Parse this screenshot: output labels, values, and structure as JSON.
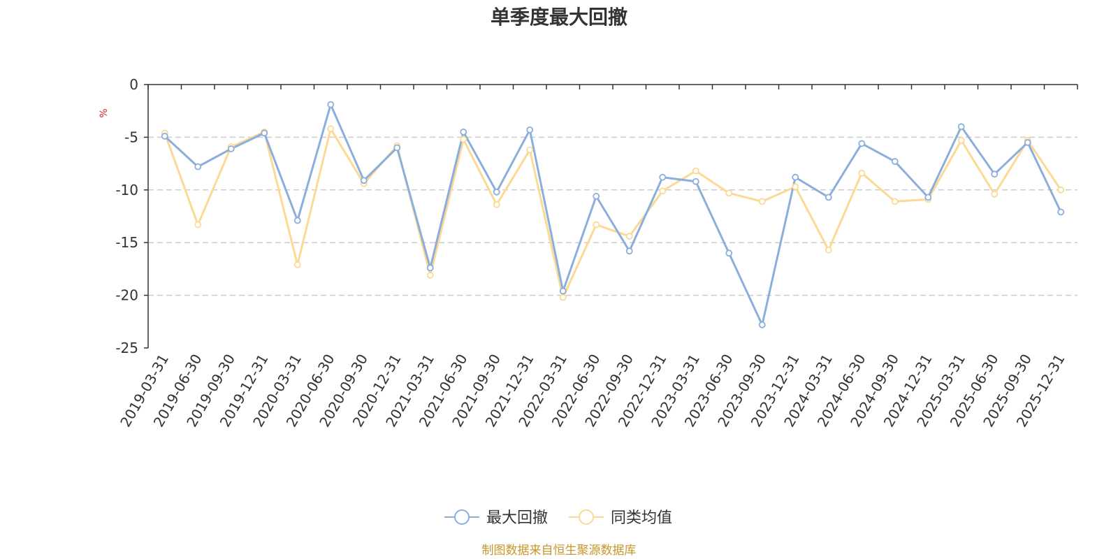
{
  "colors": {
    "series1": "#8caedc",
    "series2": "#fcd995",
    "axis": "#333333",
    "grid": "#cccccc",
    "unit": "#e02020",
    "source": "#c8962a"
  },
  "chart_data": {
    "type": "line",
    "title": "单季度最大回撤",
    "ylabel": "%",
    "xlabel": "",
    "ylim": [
      -25,
      0
    ],
    "yticks": [
      0,
      -5,
      -10,
      -15,
      -20,
      -25
    ],
    "grid": true,
    "legend_position": "bottom-center",
    "categories": [
      "2019-03-31",
      "2019-06-30",
      "2019-09-30",
      "2019-12-31",
      "2020-03-31",
      "2020-06-30",
      "2020-09-30",
      "2020-12-31",
      "2021-03-31",
      "2021-06-30",
      "2021-09-30",
      "2021-12-31",
      "2022-03-31",
      "2022-06-30",
      "2022-09-30",
      "2022-12-31",
      "2023-03-31",
      "2023-06-30",
      "2023-09-30",
      "2023-12-31",
      "2024-03-31",
      "2024-06-30",
      "2024-09-30",
      "2024-12-31",
      "2025-03-31",
      "2025-06-30",
      "2025-09-30",
      "2025-12-31"
    ],
    "series": [
      {
        "name": "最大回撤",
        "values": [
          -4.9,
          -7.8,
          -6.1,
          -4.6,
          -12.9,
          -1.9,
          -9.1,
          -6.0,
          -17.4,
          -4.5,
          -10.2,
          -4.3,
          -19.6,
          -10.6,
          -15.8,
          -8.8,
          -9.2,
          -16.0,
          -22.8,
          -8.8,
          -10.7,
          -5.6,
          -7.3,
          -10.7,
          -4.0,
          -8.5,
          -5.5,
          -12.1
        ]
      },
      {
        "name": "同类均值",
        "values": [
          -4.6,
          -13.3,
          -5.9,
          -4.5,
          -17.1,
          -4.2,
          -9.4,
          -5.8,
          -18.1,
          -5.2,
          -11.4,
          -6.2,
          -20.2,
          -13.3,
          -14.4,
          -10.1,
          -8.2,
          -10.3,
          -11.1,
          -9.7,
          -15.7,
          -8.4,
          -11.1,
          -10.9,
          -5.3,
          -10.4,
          -5.3,
          -10.0
        ]
      }
    ]
  },
  "footer": {
    "source": "制图数据来自恒生聚源数据库"
  }
}
